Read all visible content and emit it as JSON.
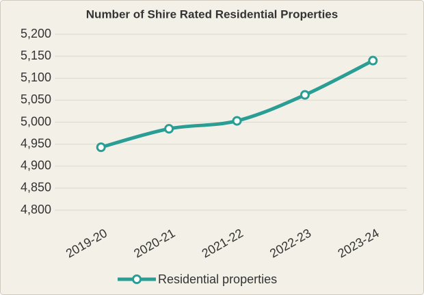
{
  "chart_data": {
    "type": "line",
    "title": "Number of Shire Rated Residential Properties",
    "categories": [
      "2019-20",
      "2020-21",
      "2021-22",
      "2022-23",
      "2023-24"
    ],
    "series": [
      {
        "name": "Residential properties",
        "color": "#2a9d95",
        "values": [
          4943,
          4985,
          5003,
          5062,
          5140
        ]
      }
    ],
    "ylim": [
      4800,
      5200
    ],
    "yticks": [
      {
        "value": 4800,
        "label": "4,800"
      },
      {
        "value": 4850,
        "label": "4,850"
      },
      {
        "value": 4900,
        "label": "4,900"
      },
      {
        "value": 4950,
        "label": "4,950"
      },
      {
        "value": 5000,
        "label": "5,000"
      },
      {
        "value": 5050,
        "label": "5,050"
      },
      {
        "value": 5100,
        "label": "5,100"
      },
      {
        "value": 5150,
        "label": "5,150"
      },
      {
        "value": 5200,
        "label": "5,200"
      }
    ],
    "grid": true,
    "legend": "bottom"
  }
}
